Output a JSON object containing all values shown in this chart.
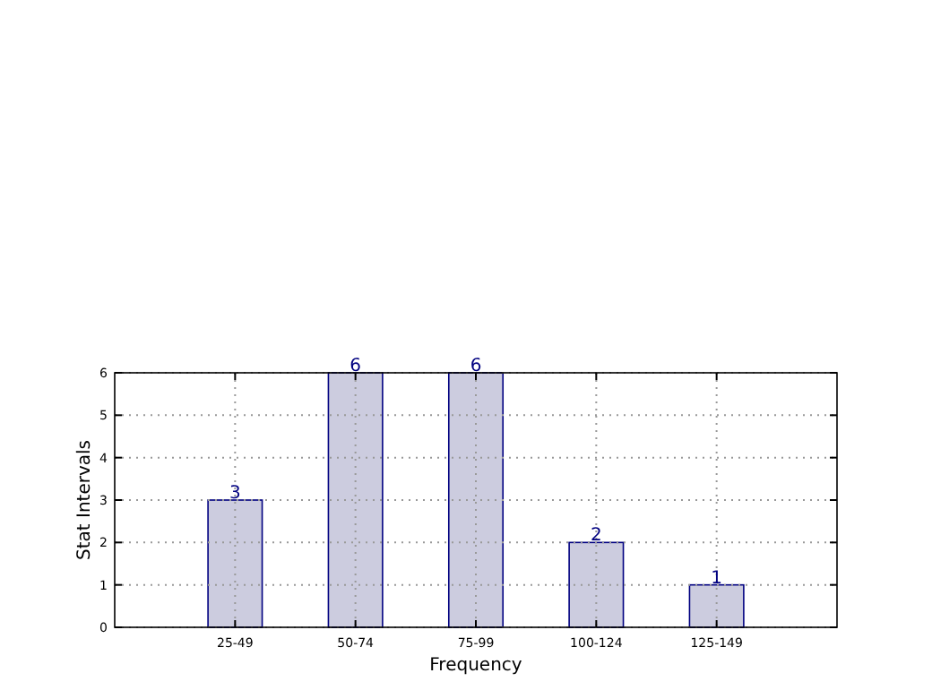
{
  "chart_data": {
    "type": "bar",
    "xlabel": "Frequency",
    "ylabel": "Stat Intervals",
    "categories": [
      "25-49",
      "50-74",
      "75-99",
      "100-124",
      "125-149"
    ],
    "values": [
      3,
      6,
      6,
      2,
      1
    ],
    "color": "#ccccdf",
    "ylim": [
      0,
      6
    ],
    "yticks": [
      0,
      1,
      2,
      3,
      4,
      5,
      6
    ],
    "grid": true,
    "data_labels": true
  }
}
